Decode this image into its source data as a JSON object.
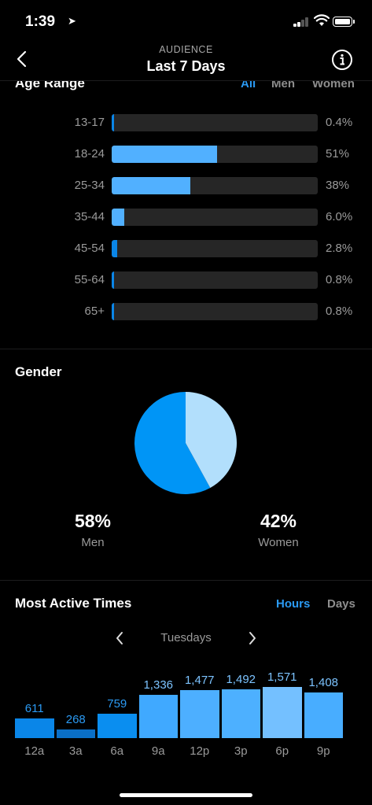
{
  "status_bar": {
    "time": "1:39"
  },
  "nav": {
    "subtitle": "AUDIENCE",
    "title": "Last 7 Days"
  },
  "age_range": {
    "title": "Age Range",
    "tabs": [
      "All",
      "Men",
      "Women"
    ],
    "active_tab": "All",
    "rows": [
      {
        "label": "13-17",
        "value": "0.4%",
        "fraction": 0.004
      },
      {
        "label": "18-24",
        "value": "51%",
        "fraction": 0.51
      },
      {
        "label": "25-34",
        "value": "38%",
        "fraction": 0.38
      },
      {
        "label": "35-44",
        "value": "6.0%",
        "fraction": 0.06
      },
      {
        "label": "45-54",
        "value": "2.8%",
        "fraction": 0.028
      },
      {
        "label": "55-64",
        "value": "0.8%",
        "fraction": 0.008
      },
      {
        "label": "65+",
        "value": "0.8%",
        "fraction": 0.008
      }
    ]
  },
  "gender": {
    "title": "Gender",
    "men": {
      "pct": "58%",
      "label": "Men",
      "fraction": 0.58,
      "color": "#0095f6"
    },
    "women": {
      "pct": "42%",
      "label": "Women",
      "fraction": 0.42,
      "color": "#b2dffc"
    }
  },
  "most_active": {
    "title": "Most Active Times",
    "tabs": [
      "Hours",
      "Days"
    ],
    "active_tab": "Hours",
    "day": "Tuesdays",
    "hours": [
      {
        "label": "12a",
        "value": "611",
        "count": 611,
        "color": "#0a86e8"
      },
      {
        "label": "3a",
        "value": "268",
        "count": 268,
        "color": "#0a6fc7"
      },
      {
        "label": "6a",
        "value": "759",
        "count": 759,
        "color": "#0a8ef0"
      },
      {
        "label": "9a",
        "value": "1,336",
        "count": 1336,
        "color": "#40a9ff"
      },
      {
        "label": "12p",
        "value": "1,477",
        "count": 1477,
        "color": "#4dafff"
      },
      {
        "label": "3p",
        "value": "1,492",
        "count": 1492,
        "color": "#4db0ff"
      },
      {
        "label": "6p",
        "value": "1,571",
        "count": 1571,
        "color": "#74c0ff"
      },
      {
        "label": "9p",
        "value": "1,408",
        "count": 1408,
        "color": "#48adff"
      }
    ]
  },
  "colors": {
    "accent": "#0095f6",
    "tab_active": "#2b9af3",
    "background": "#000000"
  }
}
